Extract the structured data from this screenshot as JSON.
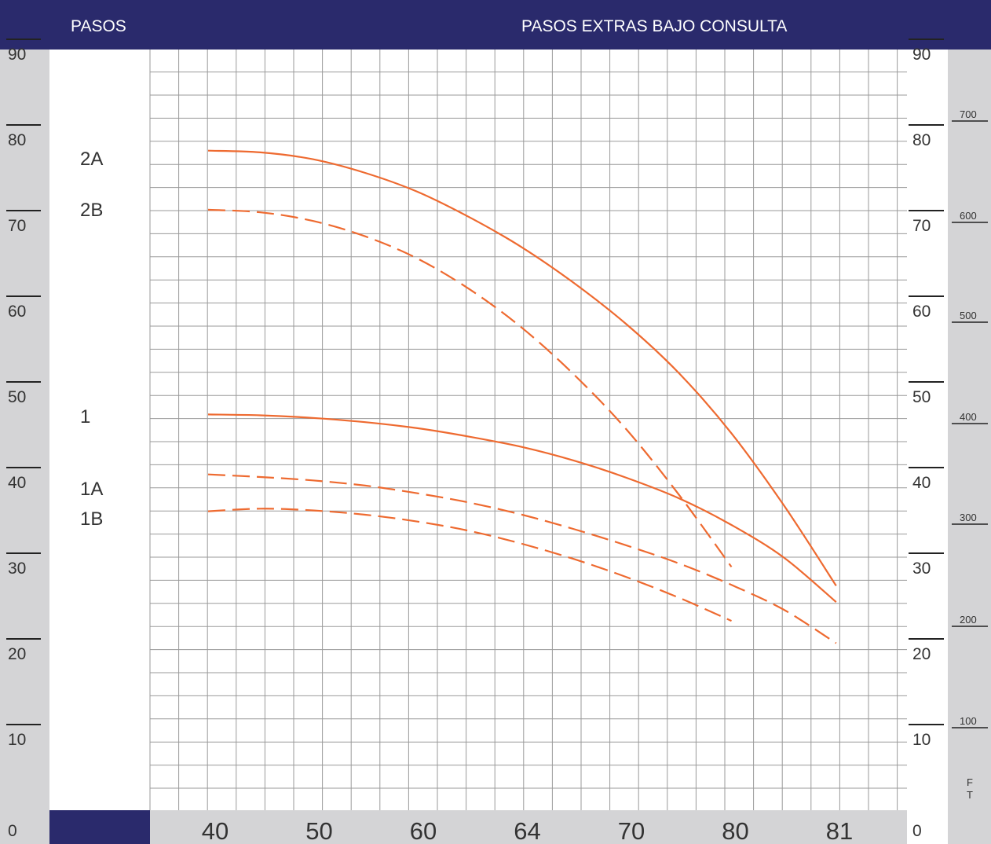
{
  "header": {
    "steps_label": "PASOS",
    "extra_label": "PASOS EXTRAS BAJO CONSULTA",
    "background": "#2a2a6c",
    "text_color": "#ffffff"
  },
  "chart_data": {
    "type": "line",
    "title": "",
    "xlabel": "",
    "ylabel": "",
    "x_tick_labels": [
      "40",
      "50",
      "60",
      "64",
      "70",
      "80",
      "81"
    ],
    "y_left_ticks": [
      "0",
      "10",
      "20",
      "30",
      "40",
      "50",
      "60",
      "70",
      "80",
      "90"
    ],
    "y_right_ticks": [
      "0",
      "10",
      "20",
      "30",
      "40",
      "50",
      "60",
      "70",
      "80",
      "90"
    ],
    "y_ft_ticks": [
      "100",
      "200",
      "300",
      "400",
      "500",
      "600",
      "700"
    ],
    "ft_unit": "F T",
    "ylim": [
      0,
      92
    ],
    "grid": true,
    "line_color": "#ee6a30",
    "series": [
      {
        "name": "2A",
        "dashed": false,
        "x": [
          0,
          0.5,
          1,
          1.5,
          2,
          2.5,
          3,
          3.5,
          4,
          4.5,
          5,
          5.5,
          6
        ],
        "y": [
          77,
          76.8,
          76,
          74.4,
          72.2,
          69.2,
          65.7,
          61.5,
          56.7,
          51,
          44,
          35.6,
          26.2
        ]
      },
      {
        "name": "2B",
        "dashed": true,
        "x": [
          0,
          0.5,
          1,
          1.5,
          2,
          2.5,
          3,
          3.5,
          4,
          4.5,
          5
        ],
        "y": [
          70.1,
          69.8,
          68.8,
          67,
          64.4,
          60.8,
          56.3,
          50.8,
          44.4,
          36.8,
          28.4
        ]
      },
      {
        "name": "1",
        "dashed": false,
        "x": [
          0,
          0.5,
          1,
          1.5,
          2,
          2.5,
          3,
          3.5,
          4,
          4.5,
          5,
          5.5,
          6
        ],
        "y": [
          46.2,
          46.1,
          45.8,
          45.3,
          44.6,
          43.6,
          42.4,
          40.8,
          38.8,
          36.4,
          33.3,
          29.5,
          24.3
        ]
      },
      {
        "name": "1A",
        "dashed": true,
        "x": [
          0,
          0.5,
          1,
          1.5,
          2,
          2.5,
          3,
          3.5,
          4,
          4.5,
          5,
          5.5,
          6
        ],
        "y": [
          39.2,
          38.9,
          38.5,
          37.9,
          37,
          35.9,
          34.5,
          32.8,
          30.9,
          28.8,
          26.3,
          23.4,
          19.5
        ]
      },
      {
        "name": "1B",
        "dashed": true,
        "x": [
          0,
          0.5,
          1,
          1.5,
          2,
          2.5,
          3,
          3.5,
          4,
          4.5,
          5
        ],
        "y": [
          34.9,
          35.2,
          35,
          34.5,
          33.7,
          32.6,
          31.1,
          29.3,
          27.2,
          24.8,
          22.1
        ]
      }
    ]
  }
}
